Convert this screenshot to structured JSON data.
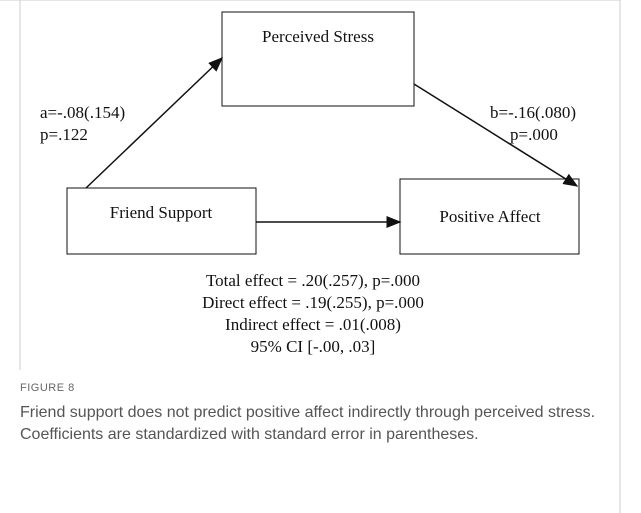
{
  "nodes": [
    {
      "label": "Perceived Stress"
    },
    {
      "label": "Friend Support"
    },
    {
      "label": "Positive Affect"
    }
  ],
  "paths": {
    "a": [
      "a=-.08(.154)",
      "p=.122"
    ],
    "b": [
      "b=-.16(.080)",
      "p=.000"
    ]
  },
  "effects": [
    "Total effect = .20(.257), p=.000",
    "Direct effect = .19(.255), p=.000",
    "Indirect effect = .01(.008)",
    "95% CI [-.00, .03]"
  ],
  "figure": {
    "label": "FIGURE 8",
    "caption": "Friend support does not predict positive affect indirectly through perceived stress. Coefficients are standardized with standard error in parentheses."
  }
}
